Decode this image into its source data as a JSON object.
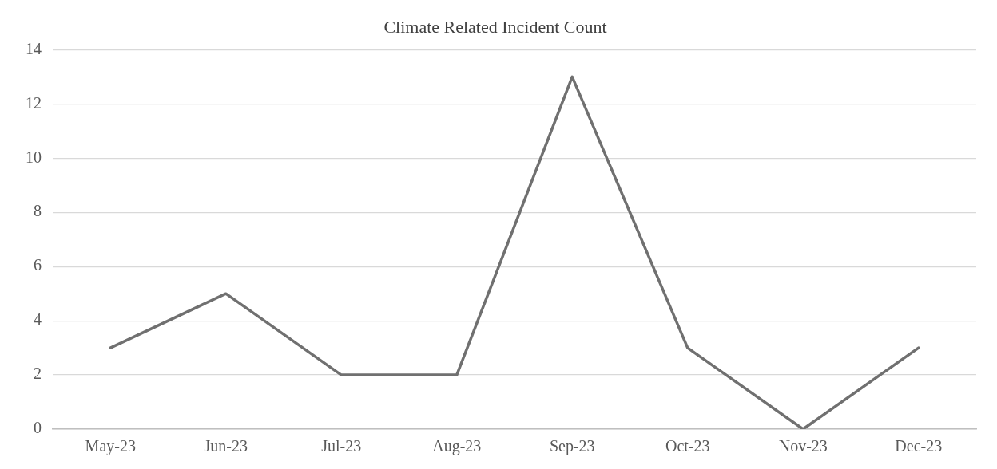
{
  "chart_data": {
    "type": "line",
    "title": "Climate Related Incident Count",
    "categories": [
      "May-23",
      "Jun-23",
      "Jul-23",
      "Aug-23",
      "Sep-23",
      "Oct-23",
      "Nov-23",
      "Dec-23"
    ],
    "values": [
      3,
      5,
      2,
      2,
      13,
      3,
      0,
      3
    ],
    "color": "#707070",
    "ylim": [
      0,
      14
    ],
    "yticks": [
      0,
      2,
      4,
      6,
      8,
      10,
      12,
      14
    ],
    "grid": "y",
    "marker": "none",
    "line_style": "solid"
  }
}
